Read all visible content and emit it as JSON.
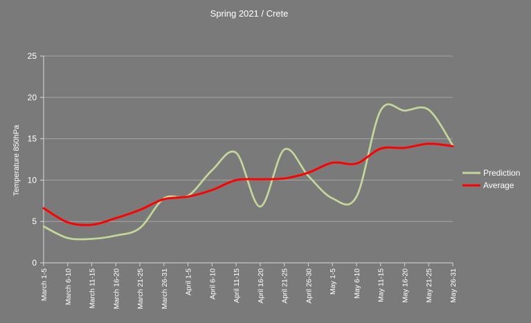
{
  "chart_data": {
    "type": "line",
    "title": "Spring 2021 / Crete",
    "ylabel": "Temperature 850hPa",
    "xlabel": "",
    "ylim": [
      0,
      25
    ],
    "yticks": [
      0,
      5,
      10,
      15,
      20,
      25
    ],
    "grid": true,
    "legend_position": "right",
    "categories": [
      "March 1-5",
      "March 6-10",
      "March 11-15",
      "March 16-20",
      "March 21-25",
      "March 26-31",
      "April 1-5",
      "April 6-10",
      "April 11-15",
      "April 16-20",
      "April 21-25",
      "April 26-30",
      "May 1-5",
      "May 6-10",
      "May 11-15",
      "May 16-20",
      "May 21-25",
      "May 26-31"
    ],
    "series": [
      {
        "name": "Prediction",
        "color": "#c4d79b",
        "values": [
          4.4,
          3.0,
          2.9,
          3.3,
          4.2,
          7.8,
          8.1,
          11.2,
          13.3,
          6.8,
          13.7,
          10.5,
          7.8,
          8.0,
          18.4,
          18.4,
          18.5,
          14.2
        ]
      },
      {
        "name": "Average",
        "color": "#ff0000",
        "values": [
          6.6,
          4.9,
          4.6,
          5.4,
          6.4,
          7.7,
          8.0,
          8.8,
          10.0,
          10.1,
          10.2,
          10.9,
          12.1,
          12.0,
          13.8,
          13.9,
          14.4,
          14.1
        ]
      }
    ]
  }
}
